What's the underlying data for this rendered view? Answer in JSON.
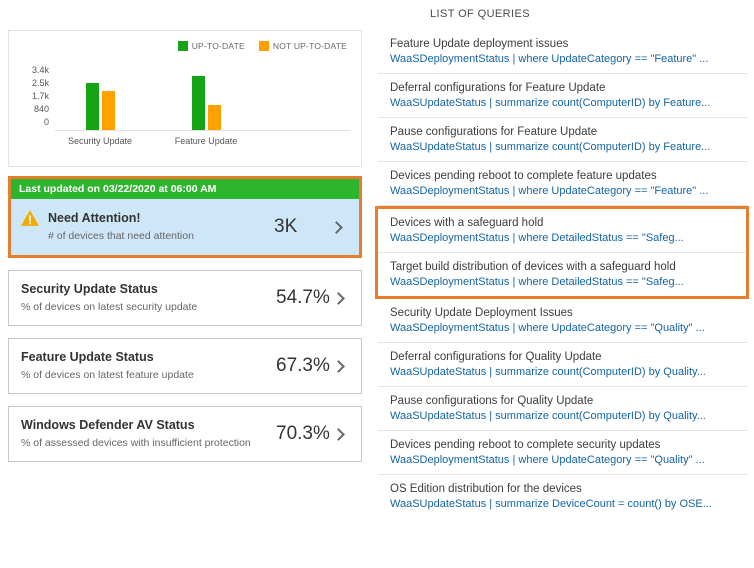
{
  "colors": {
    "up_to_date_green": "#16A316",
    "not_up_to_date_orange": "#FFA200",
    "banner_green": "#2DB52D",
    "highlight_orange": "#E87D2E",
    "attention_tile_blue": "#CDE7F8",
    "query_link_blue": "#1464A5",
    "warning_amber": "#F2A900"
  },
  "left_panel": {
    "chart_data": {
      "type": "bar",
      "title": "",
      "categories": [
        "Security Update",
        "Feature Update"
      ],
      "series": [
        {
          "name": "UP-TO-DATE",
          "color": "#16A316",
          "values": [
            2600,
            3000
          ]
        },
        {
          "name": "NOT UP-TO-DATE",
          "color": "#FFA200",
          "values": [
            2200,
            1400
          ]
        }
      ],
      "yticks": [
        "3.4k",
        "2.5k",
        "1.7k",
        "840",
        "0"
      ],
      "ymax": 3400,
      "ylim": [
        0,
        3400
      ],
      "legend_position": "top-right",
      "grid": false
    },
    "banner_text": "Last updated on 03/22/2020 at 06:00 AM",
    "need_attention": {
      "title": "Need Attention!",
      "subtitle": "# of devices that need attention",
      "value": "3K"
    },
    "tiles": [
      {
        "title": "Security Update Status",
        "subtitle": "% of devices on latest security update",
        "value": "54.7%"
      },
      {
        "title": "Feature Update Status",
        "subtitle": "% of devices on latest feature update",
        "value": "67.3%"
      },
      {
        "title": "Windows Defender AV Status",
        "subtitle": "% of assessed devices with insufficient protection",
        "value": "70.3%"
      }
    ]
  },
  "queries_panel": {
    "header": "LIST OF QUERIES",
    "items": [
      {
        "title": "Feature Update deployment issues",
        "query": "WaaSDeploymentStatus | where UpdateCategory == \"Feature\" ..."
      },
      {
        "title": "Deferral configurations for Feature Update",
        "query": "WaaSUpdateStatus | summarize count(ComputerID) by Feature..."
      },
      {
        "title": "Pause configurations for Feature Update",
        "query": "WaaSUpdateStatus | summarize count(ComputerID) by Feature..."
      },
      {
        "title": "Devices pending reboot to complete feature updates",
        "query": "WaaSDeploymentStatus | where UpdateCategory == \"Feature\" ..."
      },
      {
        "title": "Devices with a safeguard hold",
        "query": "WaaSDeploymentStatus | where DetailedStatus == \"Safeg..."
      },
      {
        "title": "Target build distribution of devices with a safeguard hold",
        "query": "WaaSDeploymentStatus | where DetailedStatus == \"Safeg..."
      },
      {
        "title": "Security Update Deployment Issues",
        "query": "WaaSDeploymentStatus | where UpdateCategory == \"Quality\" ..."
      },
      {
        "title": "Deferral configurations for Quality Update",
        "query": "WaaSUpdateStatus | summarize count(ComputerID) by Quality..."
      },
      {
        "title": "Pause configurations for Quality Update",
        "query": "WaaSUpdateStatus | summarize count(ComputerID) by Quality..."
      },
      {
        "title": "Devices pending reboot to complete security updates",
        "query": "WaaSDeploymentStatus | where UpdateCategory == \"Quality\" ..."
      },
      {
        "title": "OS Edition distribution for the devices",
        "query": "WaaSUpdateStatus | summarize DeviceCount = count() by OSE..."
      }
    ]
  }
}
